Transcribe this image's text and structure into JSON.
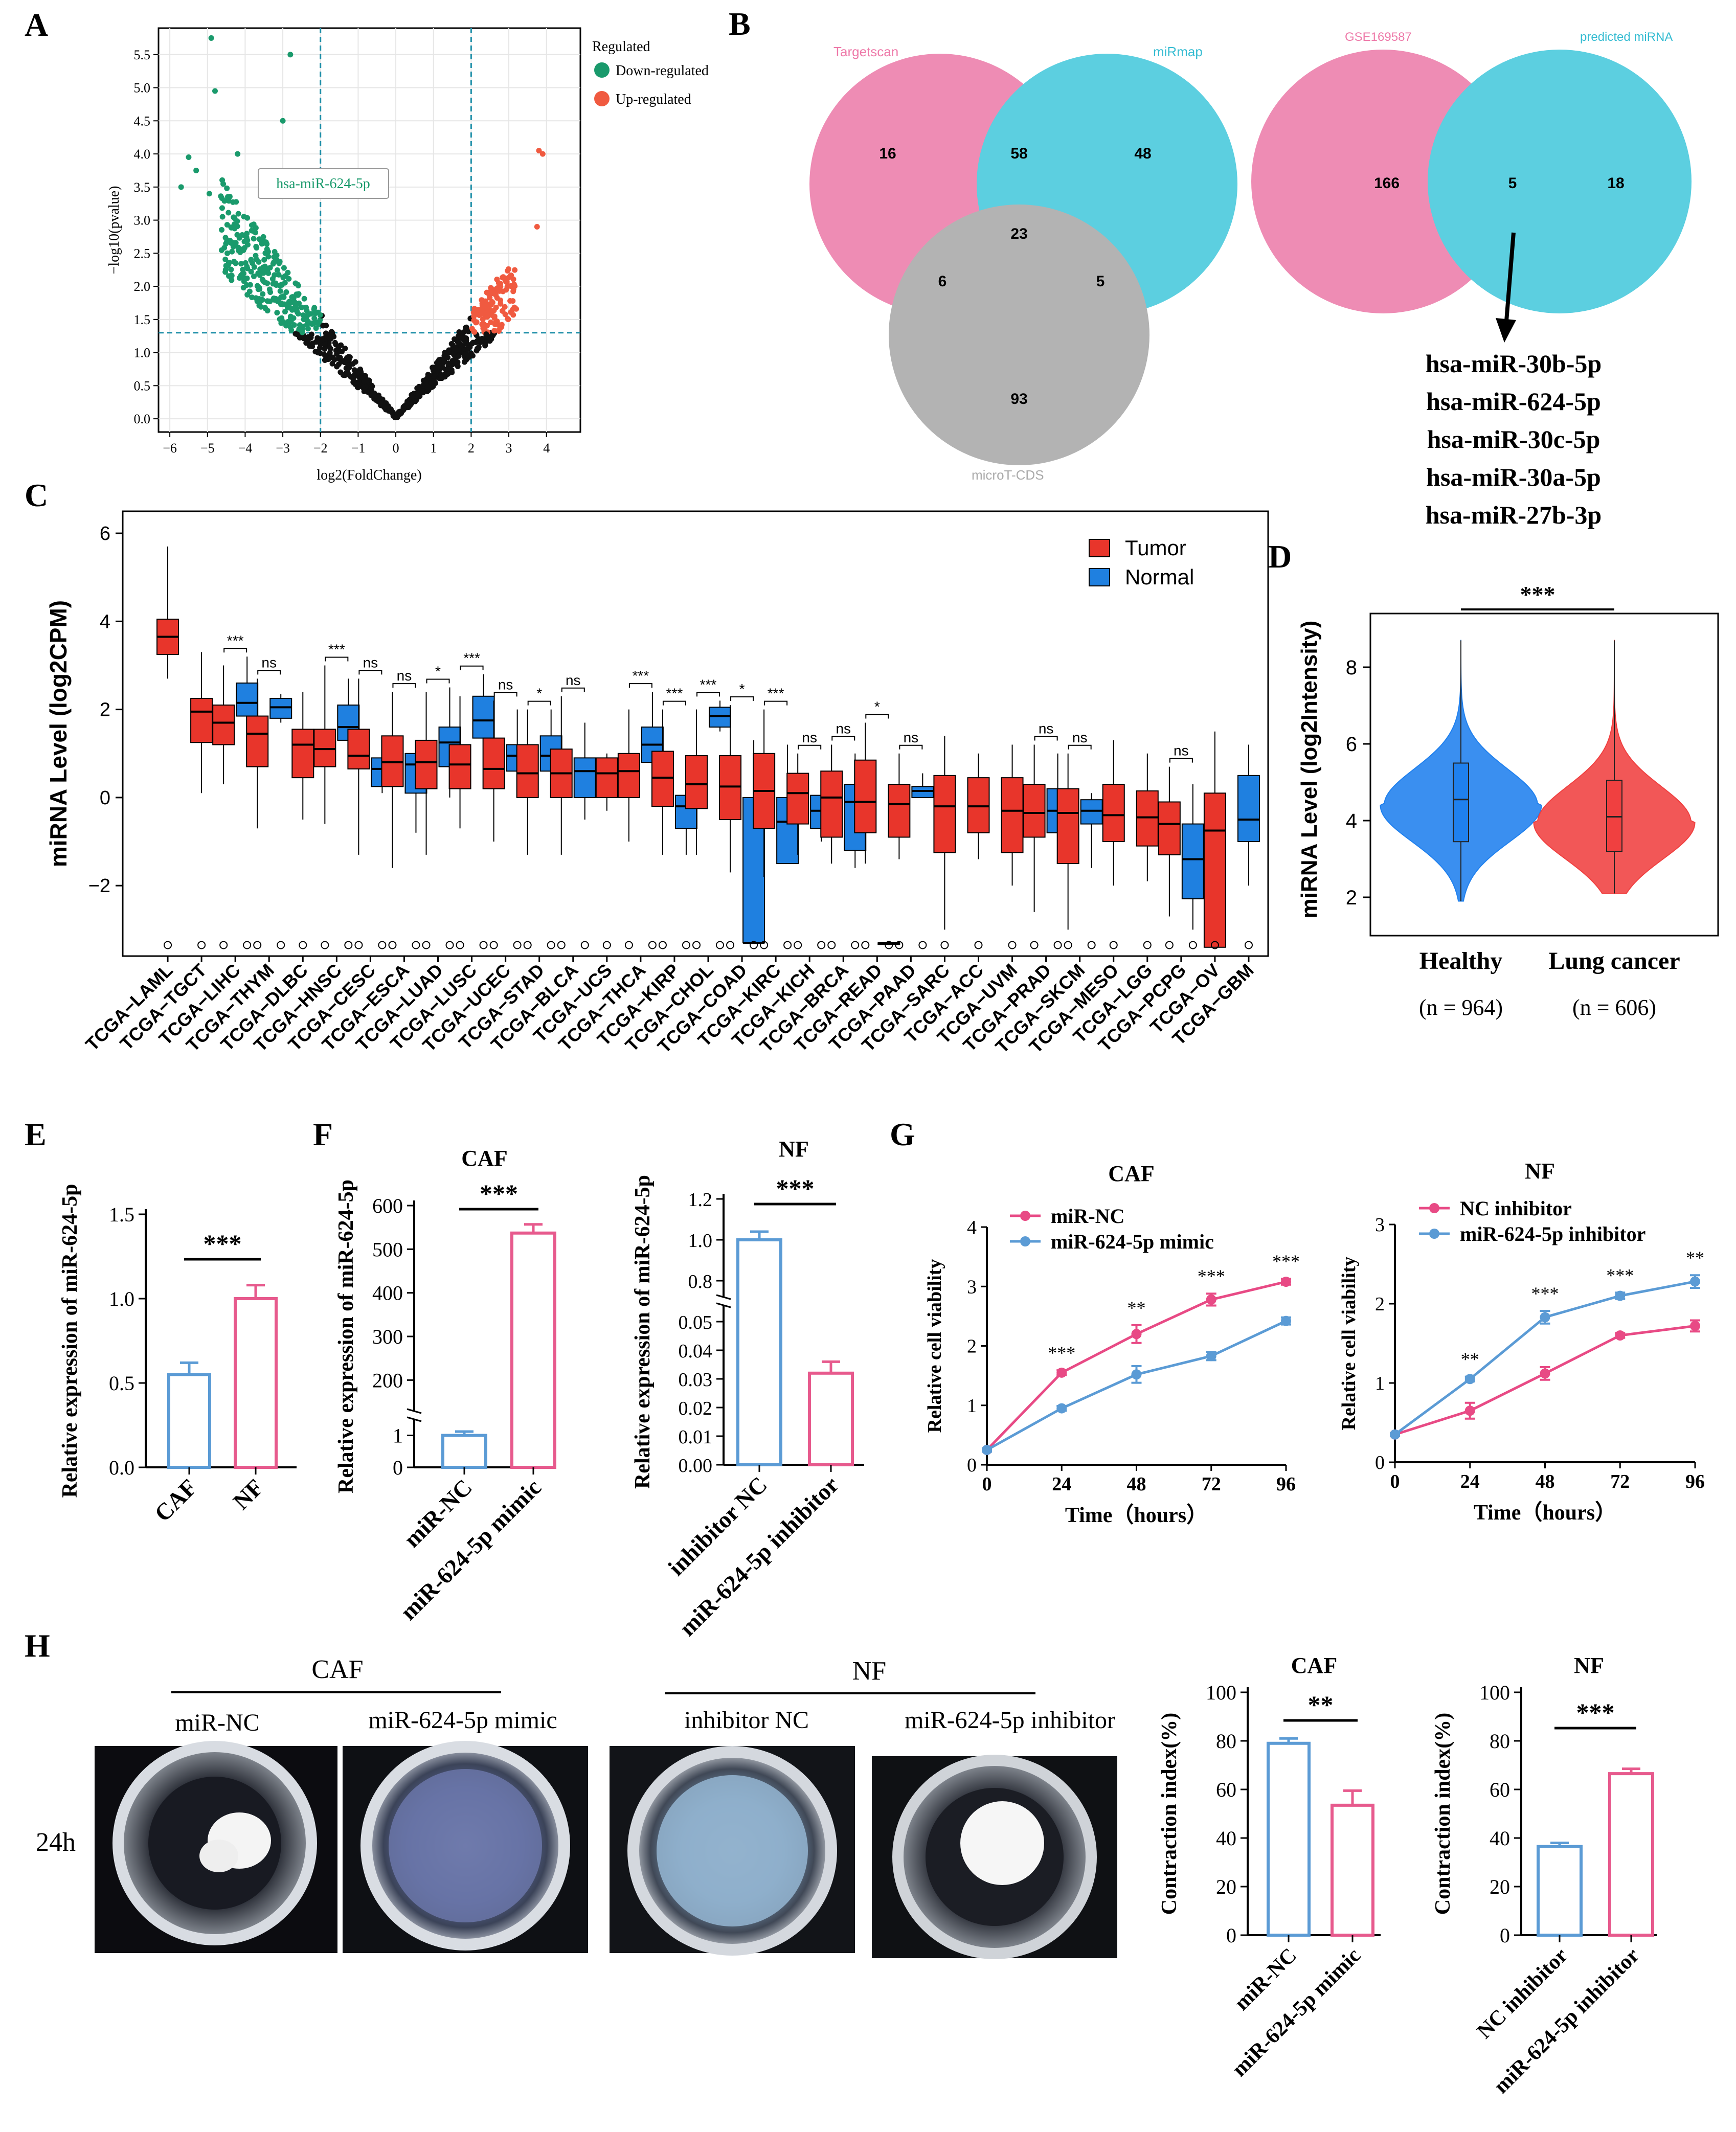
{
  "figure": {
    "panel_labels": [
      "A",
      "B",
      "C",
      "D",
      "E",
      "F",
      "G",
      "H"
    ]
  },
  "chart_data": [
    {
      "id": "A",
      "type": "scatter",
      "title": "",
      "xlabel": "log2(FoldChange)",
      "ylabel": "−log10(pvalue)",
      "xlim": [
        -6.3,
        4.9
      ],
      "ylim": [
        -0.2,
        5.9
      ],
      "xticks": [
        "−6",
        "−5",
        "−4",
        "−3",
        "−2",
        "−1",
        "0",
        "1",
        "2",
        "3",
        "4"
      ],
      "yticks": [
        "0.0",
        "0.5",
        "1.0",
        "1.5",
        "2.0",
        "2.5",
        "3.0",
        "3.5",
        "4.0",
        "4.5",
        "5.0",
        "5.5"
      ],
      "thresholds": {
        "fc": [
          -2,
          2
        ],
        "p": 1.3
      },
      "legend_title": "Regulated",
      "legend": [
        {
          "name": "Down-regulated",
          "color": "#1a9a6c"
        },
        {
          "name": "Up-regulated",
          "color": "#f05a40"
        }
      ],
      "annotation": "hsa-miR-624-5p",
      "annotation_point": [
        -2.2,
        3.6
      ]
    },
    {
      "id": "B",
      "type": "venn",
      "venn3": {
        "sets": [
          "Targetscan",
          "miRmap",
          "microT-CDS"
        ],
        "colors": [
          "#ee8cb4",
          "#5ccfe0",
          "#b3b3b3"
        ],
        "counts": {
          "a_only": "16",
          "ab": "58",
          "b_only": "48",
          "abc": "23",
          "ac": "6",
          "bc": "5",
          "c_only": "93"
        }
      },
      "venn2": {
        "sets": [
          "GSE169587",
          "predicted miRNA"
        ],
        "colors": [
          "#ee8cb4",
          "#5ccfe0"
        ],
        "counts": {
          "a_only": "166",
          "ab": "5",
          "b_only": "18"
        },
        "list": [
          "hsa-miR-30b-5p",
          "hsa-miR-624-5p",
          "hsa-miR-30c-5p",
          "hsa-miR-30a-5p",
          "hsa-miR-27b-3p"
        ]
      }
    },
    {
      "id": "C",
      "type": "box",
      "ylabel": "miRNA Level (log2CPM)",
      "ylim": [
        -3.6,
        6.5
      ],
      "yticks": [
        -2,
        0,
        2,
        4,
        6
      ],
      "legend": [
        {
          "name": "Tumor",
          "color": "#e8352b"
        },
        {
          "name": "Normal",
          "color": "#1f80e0"
        }
      ],
      "groups": [
        {
          "name": "TCGA−LAML",
          "tumor": [
            2.7,
            3.25,
            3.65,
            4.05,
            5.7
          ],
          "normal": null,
          "sig": ""
        },
        {
          "name": "TCGA−TGCT",
          "tumor": [
            0.1,
            1.25,
            1.95,
            2.25,
            3.3
          ],
          "normal": null,
          "sig": ""
        },
        {
          "name": "TCGA−LIHC",
          "tumor": [
            0.3,
            1.2,
            1.7,
            2.1,
            3.0
          ],
          "normal": [
            1.2,
            1.85,
            2.15,
            2.6,
            3.2
          ],
          "sig": "***"
        },
        {
          "name": "TCGA−THYM",
          "tumor": [
            -0.7,
            0.7,
            1.45,
            1.85,
            2.7
          ],
          "normal": [
            1.7,
            1.8,
            2.05,
            2.25,
            2.35
          ],
          "sig": "ns"
        },
        {
          "name": "TCGA−DLBC",
          "tumor": [
            -0.5,
            0.45,
            1.2,
            1.55,
            2.4
          ],
          "normal": null,
          "sig": ""
        },
        {
          "name": "TCGA−HNSC",
          "tumor": [
            -0.6,
            0.7,
            1.1,
            1.55,
            3.0
          ],
          "normal": [
            0.9,
            1.3,
            1.6,
            2.1,
            2.7
          ],
          "sig": "***"
        },
        {
          "name": "TCGA−CESC",
          "tumor": [
            -1.3,
            0.65,
            0.95,
            1.55,
            2.7
          ],
          "normal": [
            0.1,
            0.25,
            0.65,
            0.9,
            1.3
          ],
          "sig": "ns"
        },
        {
          "name": "TCGA−ESCA",
          "tumor": [
            -1.6,
            0.25,
            0.8,
            1.4,
            2.4
          ],
          "normal": [
            -0.8,
            0.1,
            0.75,
            1.0,
            1.3
          ],
          "sig": "ns"
        },
        {
          "name": "TCGA−LUAD",
          "tumor": [
            -1.3,
            0.2,
            0.8,
            1.3,
            2.4
          ],
          "normal": [
            0.0,
            0.7,
            1.25,
            1.6,
            2.5
          ],
          "sig": "*"
        },
        {
          "name": "TCGA−LUSC",
          "tumor": [
            -0.7,
            0.2,
            0.75,
            1.2,
            2.3
          ],
          "normal": [
            0.6,
            1.35,
            1.75,
            2.3,
            2.8
          ],
          "sig": "***"
        },
        {
          "name": "TCGA−UCEC",
          "tumor": [
            -1.0,
            0.2,
            0.65,
            1.35,
            2.2
          ],
          "normal": [
            0.2,
            0.6,
            0.95,
            1.2,
            2.0
          ],
          "sig": "ns"
        },
        {
          "name": "TCGA−STAD",
          "tumor": [
            -1.3,
            0.0,
            0.55,
            1.2,
            2.0
          ],
          "normal": [
            0.0,
            0.6,
            0.95,
            1.4,
            2.0
          ],
          "sig": "*"
        },
        {
          "name": "TCGA−BLCA",
          "tumor": [
            -1.3,
            0.0,
            0.55,
            1.1,
            2.3
          ],
          "normal": [
            -0.5,
            0.0,
            0.6,
            0.9,
            1.7
          ],
          "sig": "ns"
        },
        {
          "name": "TCGA−UCS",
          "tumor": [
            -0.3,
            0.0,
            0.55,
            0.9,
            1.0
          ],
          "normal": null,
          "sig": ""
        },
        {
          "name": "TCGA−THCA",
          "tumor": [
            -1.0,
            0.0,
            0.6,
            1.0,
            2.0
          ],
          "normal": [
            0.3,
            0.8,
            1.2,
            1.6,
            2.4
          ],
          "sig": "***"
        },
        {
          "name": "TCGA−KIRP",
          "tumor": [
            -1.3,
            -0.2,
            0.45,
            1.05,
            2.0
          ],
          "normal": [
            -1.3,
            -0.7,
            -0.2,
            0.05,
            0.8
          ],
          "sig": "***"
        },
        {
          "name": "TCGA−CHOL",
          "tumor": [
            -1.3,
            -0.25,
            0.3,
            0.95,
            2.0
          ],
          "normal": [
            1.5,
            1.6,
            1.85,
            2.05,
            2.2
          ],
          "sig": "***"
        },
        {
          "name": "TCGA−COAD",
          "tumor": [
            -1.7,
            -0.5,
            0.25,
            0.95,
            2.1
          ],
          "normal": [
            -3.3,
            -3.3,
            -3.3,
            0.0,
            1.3
          ],
          "sig": "*"
        },
        {
          "name": "TCGA−KIRC",
          "tumor": [
            -1.8,
            -0.7,
            0.15,
            1.0,
            2.0
          ],
          "normal": [
            -1.5,
            -1.5,
            -0.55,
            0.0,
            1.2
          ],
          "sig": "***"
        },
        {
          "name": "TCGA−KICH",
          "tumor": [
            -1.3,
            -0.6,
            0.1,
            0.55,
            1.0
          ],
          "normal": [
            -1.0,
            -0.7,
            -0.3,
            0.05,
            0.5
          ],
          "sig": "ns"
        },
        {
          "name": "TCGA−BRCA",
          "tumor": [
            -1.5,
            -0.9,
            0.0,
            0.6,
            1.2
          ],
          "normal": [
            -1.6,
            -1.2,
            -0.1,
            0.3,
            1.0
          ],
          "sig": "ns"
        },
        {
          "name": "TCGA−READ",
          "tumor": [
            -1.5,
            -0.8,
            -0.1,
            0.85,
            1.7
          ],
          "normal": [
            -3.3,
            -3.3,
            -3.3,
            -3.3,
            -3.3
          ],
          "sig": "*"
        },
        {
          "name": "TCGA−PAAD",
          "tumor": [
            -1.4,
            -0.9,
            -0.15,
            0.3,
            1.0
          ],
          "normal": [
            0.0,
            0.0,
            0.15,
            0.25,
            0.55
          ],
          "sig": "ns"
        },
        {
          "name": "TCGA−SARC",
          "tumor": [
            -3.0,
            -1.25,
            -0.2,
            0.5,
            1.4
          ],
          "normal": null,
          "sig": ""
        },
        {
          "name": "TCGA−ACC",
          "tumor": [
            -1.4,
            -0.8,
            -0.2,
            0.45,
            1.0
          ],
          "normal": null,
          "sig": ""
        },
        {
          "name": "TCGA−UVM",
          "tumor": [
            -2.0,
            -1.25,
            -0.3,
            0.45,
            1.2
          ],
          "normal": null,
          "sig": ""
        },
        {
          "name": "TCGA−PRAD",
          "tumor": [
            -2.6,
            -0.9,
            -0.35,
            0.3,
            1.2
          ],
          "normal": [
            -1.4,
            -0.8,
            -0.3,
            0.2,
            1.0
          ],
          "sig": "ns"
        },
        {
          "name": "TCGA−SKCM",
          "tumor": [
            -3.0,
            -1.5,
            -0.35,
            0.2,
            1.0
          ],
          "normal": [
            -1.6,
            -0.6,
            -0.3,
            -0.05,
            0.1
          ],
          "sig": "ns"
        },
        {
          "name": "TCGA−MESO",
          "tumor": [
            -2.0,
            -1.0,
            -0.4,
            0.3,
            1.3
          ],
          "normal": null,
          "sig": ""
        },
        {
          "name": "TCGA−LGG",
          "tumor": [
            -1.9,
            -1.1,
            -0.45,
            0.15,
            1.0
          ],
          "normal": null,
          "sig": ""
        },
        {
          "name": "TCGA−PCPG",
          "tumor": [
            -2.7,
            -1.3,
            -0.6,
            -0.1,
            0.7
          ],
          "normal": [
            -3.0,
            -2.3,
            -1.4,
            -0.6,
            0.3
          ],
          "sig": "ns"
        },
        {
          "name": "TCGA−OV",
          "tumor": [
            -3.4,
            -3.4,
            -0.75,
            0.1,
            1.5
          ],
          "normal": null,
          "sig": ""
        },
        {
          "name": "TCGA−GBM",
          "tumor": null,
          "normal": [
            -2.0,
            -1.0,
            -0.5,
            0.5,
            1.2
          ],
          "sig": ""
        }
      ]
    },
    {
      "id": "D",
      "type": "violin",
      "ylabel": "miRNA Level (log2Intensity)",
      "ylim": [
        1.0,
        9.4
      ],
      "yticks": [
        2,
        4,
        6,
        8
      ],
      "sig": "***",
      "groups": [
        {
          "name": "Healthy",
          "n": "(n = 964)",
          "color": "#1f80ee",
          "min": 1.9,
          "q1": 3.45,
          "median": 4.55,
          "q3": 5.5,
          "max": 8.7
        },
        {
          "name": "Lung cancer",
          "n": "(n = 606)",
          "color": "#f04040",
          "min": 2.1,
          "q1": 3.2,
          "median": 4.1,
          "q3": 5.05,
          "max": 8.7
        }
      ]
    },
    {
      "id": "E",
      "type": "bar",
      "ylabel": "Relative expression of miR-624-5p",
      "categories": [
        "CAF",
        "NF"
      ],
      "values": [
        0.55,
        1.0
      ],
      "errors": [
        0.07,
        0.08
      ],
      "ylim": [
        0,
        1.5
      ],
      "yticks": [
        "0.0",
        "0.5",
        "1.0",
        "1.5"
      ],
      "sig": "***"
    },
    {
      "id": "F1",
      "type": "bar",
      "title": "CAF",
      "ylabel": "Relative expression of miR-624-5p",
      "categories": [
        "miR-NC",
        "miR-624-5p mimic"
      ],
      "values": [
        1.0,
        537
      ],
      "errors": [
        0.12,
        20
      ],
      "yticks": [
        "0",
        "1",
        "200",
        "300",
        "400",
        "500",
        "600"
      ],
      "sig": "***"
    },
    {
      "id": "F2",
      "type": "bar",
      "title": "NF",
      "ylabel": "Relative expression of miR-624-5p",
      "categories": [
        "inhibitor NC",
        "miR-624-5p inhibitor"
      ],
      "values": [
        1.0,
        0.032
      ],
      "errors": [
        0.04,
        0.004
      ],
      "yticks": [
        "0.00",
        "0.01",
        "0.02",
        "0.03",
        "0.04",
        "0.05",
        "0.8",
        "1.0",
        "1.2"
      ],
      "sig": "***"
    },
    {
      "id": "G1",
      "type": "line",
      "title": "CAF",
      "xlabel": "Time（hours）",
      "ylabel": "Relative cell viability",
      "x": [
        0,
        24,
        48,
        72,
        96
      ],
      "ylim": [
        0,
        4
      ],
      "yticks": [
        "0",
        "1",
        "2",
        "3",
        "4"
      ],
      "series": [
        {
          "name": "miR-NC",
          "color": "#e84a85",
          "values": [
            0.25,
            1.55,
            2.2,
            2.78,
            3.08
          ],
          "errors": [
            0.03,
            0.04,
            0.15,
            0.1,
            0.05
          ]
        },
        {
          "name": "miR-624-5p mimic",
          "color": "#5b9bd5",
          "values": [
            0.25,
            0.95,
            1.52,
            1.83,
            2.42
          ],
          "errors": [
            0.03,
            0.04,
            0.14,
            0.07,
            0.06
          ]
        }
      ],
      "sig": [
        "",
        "***",
        "**",
        "***",
        "***"
      ]
    },
    {
      "id": "G2",
      "type": "line",
      "title": "NF",
      "xlabel": "Time（hours）",
      "ylabel": "Relative cell viability",
      "x": [
        0,
        24,
        48,
        72,
        96
      ],
      "ylim": [
        0,
        3
      ],
      "yticks": [
        "0",
        "1",
        "2",
        "3"
      ],
      "series": [
        {
          "name": "NC inhibitor",
          "color": "#e84a85",
          "values": [
            0.35,
            0.65,
            1.12,
            1.6,
            1.72
          ],
          "errors": [
            0.02,
            0.1,
            0.08,
            0.03,
            0.07
          ]
        },
        {
          "name": "miR-624-5p inhibitor",
          "color": "#5b9bd5",
          "values": [
            0.35,
            1.05,
            1.83,
            2.1,
            2.28
          ],
          "errors": [
            0.02,
            0.03,
            0.08,
            0.04,
            0.08
          ]
        }
      ],
      "sig": [
        "",
        "**",
        "***",
        "***",
        "**"
      ]
    },
    {
      "id": "H1",
      "type": "bar",
      "title": "CAF",
      "ylabel": "Contraction index(%)",
      "categories": [
        "miR-NC",
        "miR-624-5p mimic"
      ],
      "values": [
        79,
        53.5
      ],
      "errors": [
        2,
        6
      ],
      "ylim": [
        0,
        100
      ],
      "yticks": [
        "0",
        "20",
        "40",
        "60",
        "80",
        "100"
      ],
      "sig": "**"
    },
    {
      "id": "H2",
      "type": "bar",
      "title": "NF",
      "ylabel": "Contraction index(%)",
      "categories": [
        "NC inhibitor",
        "miR-624-5p inhibitor"
      ],
      "values": [
        36.5,
        66.5
      ],
      "errors": [
        1.5,
        2
      ],
      "ylim": [
        0,
        100
      ],
      "yticks": [
        "0",
        "20",
        "40",
        "60",
        "80",
        "100"
      ],
      "sig": "***"
    }
  ],
  "photos": {
    "caf_header": "CAF",
    "nf_header": "NF",
    "labels": [
      "miR-NC",
      "miR-624-5p mimic",
      "inhibitor NC",
      "miR-624-5p inhibitor"
    ],
    "timepoint": "24h"
  },
  "colors": {
    "blue": "#5b9bd5",
    "pink": "#e75a8d"
  }
}
